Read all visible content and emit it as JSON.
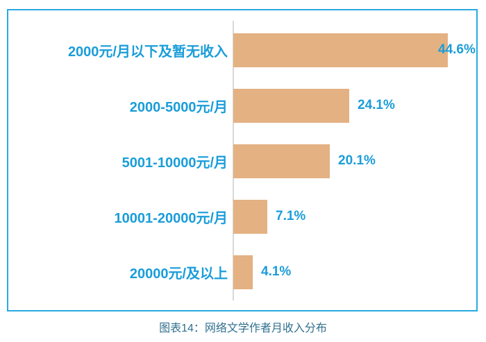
{
  "chart_data": {
    "type": "bar",
    "orientation": "horizontal",
    "title": "图表14：网络文学作者月收入分布",
    "categories": [
      "2000元/月以下及暂无收入",
      "2000-5000元/月",
      "5001-10000元/月",
      "10001-20000元/月",
      "20000元/及以上"
    ],
    "values": [
      44.6,
      24.1,
      20.1,
      7.1,
      4.1
    ],
    "value_labels": [
      "44.6%",
      "24.1%",
      "20.1%",
      "7.1%",
      "4.1%"
    ],
    "xlabel": "",
    "ylabel": "",
    "xlim": [
      0,
      50
    ],
    "grid": false,
    "legend": false,
    "colors": {
      "bar_fill": "#e4b183",
      "label_text": "#1a9dd9",
      "frame_border": "#29a9e1",
      "axis_line": "#d8d8d8",
      "caption_text": "#31708f",
      "background": "#ffffff"
    }
  }
}
